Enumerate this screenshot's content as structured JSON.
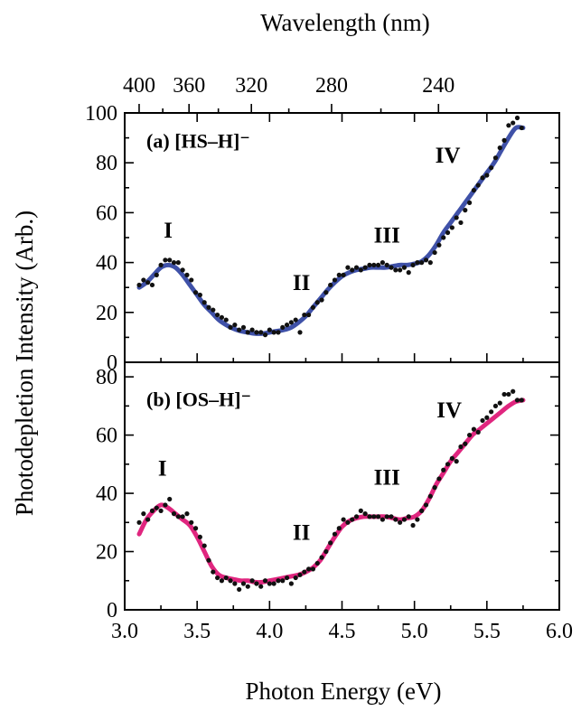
{
  "chart_data": [
    {
      "type": "scatter",
      "panel_label": "(a) [HS–H]⁻",
      "region_labels": [
        {
          "text": "I",
          "x": 3.3,
          "y": 50
        },
        {
          "text": "II",
          "x": 4.22,
          "y": 29
        },
        {
          "text": "III",
          "x": 4.81,
          "y": 48
        },
        {
          "text": "IV",
          "x": 5.23,
          "y": 80
        }
      ],
      "ylim": [
        0,
        100
      ],
      "yticks": [
        0,
        20,
        40,
        60,
        80,
        100
      ],
      "series": [
        {
          "kind": "points",
          "values": [
            [
              3.1,
              31
            ],
            [
              3.13,
              33
            ],
            [
              3.16,
              32
            ],
            [
              3.19,
              31
            ],
            [
              3.22,
              35
            ],
            [
              3.25,
              39
            ],
            [
              3.28,
              41
            ],
            [
              3.31,
              41
            ],
            [
              3.34,
              40
            ],
            [
              3.37,
              40
            ],
            [
              3.4,
              37
            ],
            [
              3.43,
              35
            ],
            [
              3.46,
              33
            ],
            [
              3.49,
              28
            ],
            [
              3.52,
              27
            ],
            [
              3.55,
              24
            ],
            [
              3.58,
              22
            ],
            [
              3.61,
              21
            ],
            [
              3.64,
              19
            ],
            [
              3.67,
              18
            ],
            [
              3.7,
              17
            ],
            [
              3.73,
              14
            ],
            [
              3.76,
              15
            ],
            [
              3.79,
              13
            ],
            [
              3.82,
              14
            ],
            [
              3.85,
              12
            ],
            [
              3.88,
              13
            ],
            [
              3.91,
              12
            ],
            [
              3.94,
              12
            ],
            [
              3.97,
              11
            ],
            [
              4.0,
              13
            ],
            [
              4.03,
              12
            ],
            [
              4.06,
              12
            ],
            [
              4.09,
              14
            ],
            [
              4.12,
              15
            ],
            [
              4.15,
              16
            ],
            [
              4.18,
              17
            ],
            [
              4.21,
              12
            ],
            [
              4.24,
              19
            ],
            [
              4.27,
              19
            ],
            [
              4.3,
              22
            ],
            [
              4.33,
              24
            ],
            [
              4.36,
              25
            ],
            [
              4.39,
              28
            ],
            [
              4.42,
              31
            ],
            [
              4.45,
              33
            ],
            [
              4.48,
              35
            ],
            [
              4.51,
              35
            ],
            [
              4.54,
              38
            ],
            [
              4.57,
              37
            ],
            [
              4.6,
              38
            ],
            [
              4.63,
              37
            ],
            [
              4.66,
              38
            ],
            [
              4.69,
              39
            ],
            [
              4.72,
              39
            ],
            [
              4.75,
              39
            ],
            [
              4.78,
              40
            ],
            [
              4.81,
              39
            ],
            [
              4.84,
              38
            ],
            [
              4.87,
              37
            ],
            [
              4.9,
              37
            ],
            [
              4.93,
              38
            ],
            [
              4.96,
              36
            ],
            [
              4.99,
              39
            ],
            [
              5.02,
              40
            ],
            [
              5.05,
              40
            ],
            [
              5.08,
              41
            ],
            [
              5.11,
              40
            ],
            [
              5.14,
              44
            ],
            [
              5.17,
              47
            ],
            [
              5.2,
              50
            ],
            [
              5.23,
              52
            ],
            [
              5.26,
              54
            ],
            [
              5.29,
              58
            ],
            [
              5.32,
              56
            ],
            [
              5.35,
              61
            ],
            [
              5.38,
              64
            ],
            [
              5.41,
              69
            ],
            [
              5.44,
              71
            ],
            [
              5.47,
              74
            ],
            [
              5.5,
              75
            ],
            [
              5.53,
              78
            ],
            [
              5.56,
              82
            ],
            [
              5.59,
              86
            ],
            [
              5.62,
              89
            ],
            [
              5.65,
              95
            ],
            [
              5.68,
              96
            ],
            [
              5.71,
              98
            ],
            [
              5.74,
              94
            ]
          ]
        },
        {
          "kind": "curve",
          "color": "#3f51a8",
          "x": [
            3.1,
            3.15,
            3.2,
            3.25,
            3.3,
            3.35,
            3.4,
            3.45,
            3.5,
            3.55,
            3.6,
            3.65,
            3.7,
            3.75,
            3.8,
            3.85,
            3.9,
            3.95,
            4.0,
            4.05,
            4.1,
            4.15,
            4.2,
            4.25,
            4.3,
            4.35,
            4.4,
            4.45,
            4.5,
            4.55,
            4.6,
            4.65,
            4.7,
            4.75,
            4.8,
            4.85,
            4.9,
            4.95,
            5.0,
            5.05,
            5.1,
            5.15,
            5.2,
            5.25,
            5.3,
            5.35,
            5.4,
            5.45,
            5.5,
            5.55,
            5.6,
            5.65,
            5.7,
            5.75
          ],
          "y": [
            30,
            32,
            35,
            38,
            39,
            38,
            35,
            31,
            27,
            23,
            20,
            17,
            15,
            13.5,
            12.5,
            12,
            11.5,
            11.5,
            12,
            12.5,
            13,
            14,
            16,
            18.5,
            22,
            25.5,
            29,
            32,
            34.5,
            36,
            37,
            37.5,
            38,
            38,
            38,
            38.5,
            39,
            39,
            39.5,
            40.5,
            43,
            47,
            52,
            56,
            60,
            64,
            68,
            72,
            76,
            80,
            85,
            90,
            94,
            94
          ]
        }
      ]
    },
    {
      "type": "scatter",
      "panel_label": "(b) [OS–H]⁻",
      "region_labels": [
        {
          "text": "I",
          "x": 3.26,
          "y": 46
        },
        {
          "text": "II",
          "x": 4.22,
          "y": 24
        },
        {
          "text": "III",
          "x": 4.81,
          "y": 43
        },
        {
          "text": "IV",
          "x": 5.24,
          "y": 66
        }
      ],
      "ylim": [
        0,
        85
      ],
      "yticks": [
        0,
        20,
        40,
        60,
        80
      ],
      "series": [
        {
          "kind": "points",
          "values": [
            [
              3.1,
              30
            ],
            [
              3.13,
              33
            ],
            [
              3.16,
              31
            ],
            [
              3.19,
              34
            ],
            [
              3.22,
              35
            ],
            [
              3.25,
              34
            ],
            [
              3.28,
              36
            ],
            [
              3.31,
              38
            ],
            [
              3.34,
              33
            ],
            [
              3.37,
              32
            ],
            [
              3.4,
              32
            ],
            [
              3.43,
              33
            ],
            [
              3.46,
              30
            ],
            [
              3.49,
              28
            ],
            [
              3.52,
              25
            ],
            [
              3.55,
              22
            ],
            [
              3.58,
              17
            ],
            [
              3.61,
              13
            ],
            [
              3.64,
              11
            ],
            [
              3.67,
              10
            ],
            [
              3.7,
              11
            ],
            [
              3.73,
              10
            ],
            [
              3.76,
              9
            ],
            [
              3.79,
              7
            ],
            [
              3.82,
              9
            ],
            [
              3.85,
              8
            ],
            [
              3.88,
              10
            ],
            [
              3.91,
              9
            ],
            [
              3.94,
              8
            ],
            [
              3.97,
              10
            ],
            [
              4.0,
              9
            ],
            [
              4.03,
              9
            ],
            [
              4.06,
              10
            ],
            [
              4.09,
              10
            ],
            [
              4.12,
              11
            ],
            [
              4.15,
              9
            ],
            [
              4.18,
              11
            ],
            [
              4.21,
              12
            ],
            [
              4.24,
              13
            ],
            [
              4.27,
              14
            ],
            [
              4.3,
              14
            ],
            [
              4.33,
              16
            ],
            [
              4.36,
              18
            ],
            [
              4.39,
              20
            ],
            [
              4.42,
              23
            ],
            [
              4.45,
              26
            ],
            [
              4.48,
              28
            ],
            [
              4.51,
              31
            ],
            [
              4.54,
              30
            ],
            [
              4.57,
              31
            ],
            [
              4.6,
              32
            ],
            [
              4.63,
              34
            ],
            [
              4.66,
              33
            ],
            [
              4.69,
              32
            ],
            [
              4.72,
              32
            ],
            [
              4.75,
              32
            ],
            [
              4.78,
              31
            ],
            [
              4.81,
              32
            ],
            [
              4.84,
              32
            ],
            [
              4.87,
              31
            ],
            [
              4.9,
              30
            ],
            [
              4.93,
              31
            ],
            [
              4.96,
              32
            ],
            [
              4.99,
              29
            ],
            [
              5.02,
              31
            ],
            [
              5.05,
              34
            ],
            [
              5.08,
              36
            ],
            [
              5.11,
              39
            ],
            [
              5.14,
              42
            ],
            [
              5.17,
              45
            ],
            [
              5.2,
              48
            ],
            [
              5.23,
              50
            ],
            [
              5.26,
              52
            ],
            [
              5.29,
              51
            ],
            [
              5.32,
              56
            ],
            [
              5.35,
              57
            ],
            [
              5.38,
              60
            ],
            [
              5.41,
              62
            ],
            [
              5.44,
              61
            ],
            [
              5.47,
              65
            ],
            [
              5.5,
              66
            ],
            [
              5.53,
              68
            ],
            [
              5.56,
              70
            ],
            [
              5.59,
              71
            ],
            [
              5.62,
              74
            ],
            [
              5.65,
              74
            ],
            [
              5.68,
              75
            ],
            [
              5.71,
              72
            ],
            [
              5.74,
              72
            ]
          ]
        },
        {
          "kind": "curve",
          "color": "#e0267f",
          "x": [
            3.1,
            3.15,
            3.2,
            3.25,
            3.3,
            3.35,
            3.4,
            3.45,
            3.5,
            3.55,
            3.6,
            3.65,
            3.7,
            3.75,
            3.8,
            3.85,
            3.9,
            3.95,
            4.0,
            4.05,
            4.1,
            4.15,
            4.2,
            4.25,
            4.3,
            4.35,
            4.4,
            4.45,
            4.5,
            4.55,
            4.6,
            4.65,
            4.7,
            4.75,
            4.8,
            4.85,
            4.9,
            4.95,
            5.0,
            5.05,
            5.1,
            5.15,
            5.2,
            5.25,
            5.3,
            5.35,
            5.4,
            5.45,
            5.5,
            5.55,
            5.6,
            5.65,
            5.7,
            5.75
          ],
          "y": [
            26,
            31,
            34,
            36,
            35,
            33,
            31,
            29,
            25,
            20,
            15,
            12,
            11,
            10.5,
            10,
            10,
            9.5,
            9.5,
            10,
            10.5,
            11,
            11.5,
            12,
            13,
            14.5,
            17,
            21,
            25,
            28.5,
            30.5,
            31.5,
            32,
            32,
            32,
            32,
            31.5,
            31,
            31.5,
            32,
            34,
            38,
            43,
            47,
            51,
            54,
            57,
            60,
            62,
            64,
            66,
            68,
            70,
            71.5,
            72
          ]
        }
      ]
    }
  ],
  "axes": {
    "xlabel": "Photon Energy (eV)",
    "xlim": [
      3.0,
      6.0
    ],
    "xticks": [
      "3.0",
      "3.5",
      "4.0",
      "4.5",
      "5.0",
      "5.5",
      "6.0"
    ],
    "top_xlabel": "Wavelength (nm)",
    "top_xticks": [
      "400",
      "360",
      "320",
      "280",
      "240"
    ],
    "ylabel": "Photodepletion Intensity (Arb.)"
  }
}
